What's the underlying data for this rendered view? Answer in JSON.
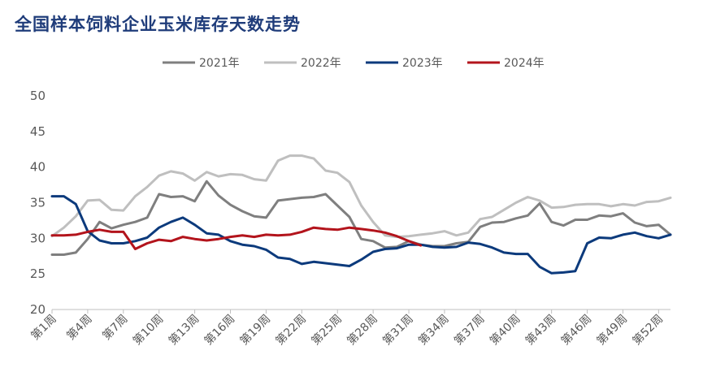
{
  "chart_data": {
    "type": "line",
    "title": "全国样本饲料企业玉米库存天数走势",
    "xlabel": "",
    "ylabel": "",
    "ylim": [
      20,
      50
    ],
    "yticks": [
      "20",
      "25",
      "30",
      "35",
      "40",
      "45",
      "50"
    ],
    "x_tick_labels": [
      "第1周",
      "第4周",
      "第7周",
      "第10周",
      "第13周",
      "第16周",
      "第19周",
      "第22周",
      "第25周",
      "第28周",
      "第31周",
      "第34周",
      "第37周",
      "第40周",
      "第43周",
      "第46周",
      "第49周",
      "第52周"
    ],
    "x_tick_weeks": [
      1,
      4,
      7,
      10,
      13,
      16,
      19,
      22,
      25,
      28,
      31,
      34,
      37,
      40,
      43,
      46,
      49,
      52
    ],
    "num_weeks": 53,
    "legend": "top",
    "series": [
      {
        "name": "2021年",
        "color": "#7f7f7f",
        "values": [
          27.7,
          27.7,
          28.0,
          29.9,
          32.3,
          31.4,
          31.9,
          32.3,
          32.9,
          36.2,
          35.8,
          35.9,
          35.2,
          38.0,
          36.0,
          34.7,
          33.8,
          33.1,
          32.9,
          35.3,
          35.5,
          35.7,
          35.8,
          36.2,
          34.6,
          33.0,
          29.9,
          29.6,
          28.7,
          28.8,
          29.6,
          29.1,
          28.9,
          28.9,
          29.3,
          29.5,
          31.6,
          32.2,
          32.3,
          32.8,
          33.2,
          34.9,
          32.3,
          31.8,
          32.6,
          32.6,
          33.2,
          33.1,
          33.5,
          32.2,
          31.7,
          31.9,
          30.5
        ]
      },
      {
        "name": "2022年",
        "color": "#bfbfbf",
        "values": [
          30.3,
          31.5,
          33.1,
          35.3,
          35.4,
          34.0,
          33.9,
          35.9,
          37.2,
          38.8,
          39.4,
          39.1,
          38.1,
          39.3,
          38.7,
          39.0,
          38.9,
          38.3,
          38.1,
          40.9,
          41.6,
          41.6,
          41.2,
          39.5,
          39.2,
          37.9,
          34.6,
          32.3,
          30.4,
          30.2,
          30.3,
          30.5,
          30.7,
          31.0,
          30.4,
          30.8,
          32.7,
          33.0,
          34.0,
          35.0,
          35.8,
          35.3,
          34.3,
          34.4,
          34.7,
          34.8,
          34.8,
          34.5,
          34.8,
          34.6,
          35.1,
          35.2,
          35.7
        ]
      },
      {
        "name": "2023年",
        "color": "#0c3a7c",
        "values": [
          35.9,
          35.9,
          34.8,
          31.0,
          29.7,
          29.3,
          29.3,
          29.6,
          30.1,
          31.5,
          32.3,
          32.9,
          31.9,
          30.7,
          30.5,
          29.6,
          29.1,
          28.9,
          28.4,
          27.3,
          27.1,
          26.4,
          26.7,
          26.5,
          26.3,
          26.1,
          27.0,
          28.1,
          28.5,
          28.6,
          29.1,
          29.1,
          28.8,
          28.7,
          28.8,
          29.4,
          29.2,
          28.7,
          28.0,
          27.8,
          27.8,
          26.0,
          25.1,
          25.2,
          25.4,
          29.3,
          30.1,
          30.0,
          30.5,
          30.8,
          30.3,
          30.0,
          30.5
        ]
      },
      {
        "name": "2024年",
        "color": "#b3141c",
        "values": [
          30.4,
          30.4,
          30.5,
          30.9,
          31.2,
          30.9,
          30.9,
          28.5,
          29.3,
          29.8,
          29.6,
          30.2,
          29.9,
          29.7,
          29.9,
          30.2,
          30.4,
          30.2,
          30.5,
          30.4,
          30.5,
          30.9,
          31.5,
          31.3,
          31.2,
          31.5,
          31.3,
          31.1,
          30.8,
          30.3,
          29.6,
          29.0
        ]
      }
    ]
  }
}
